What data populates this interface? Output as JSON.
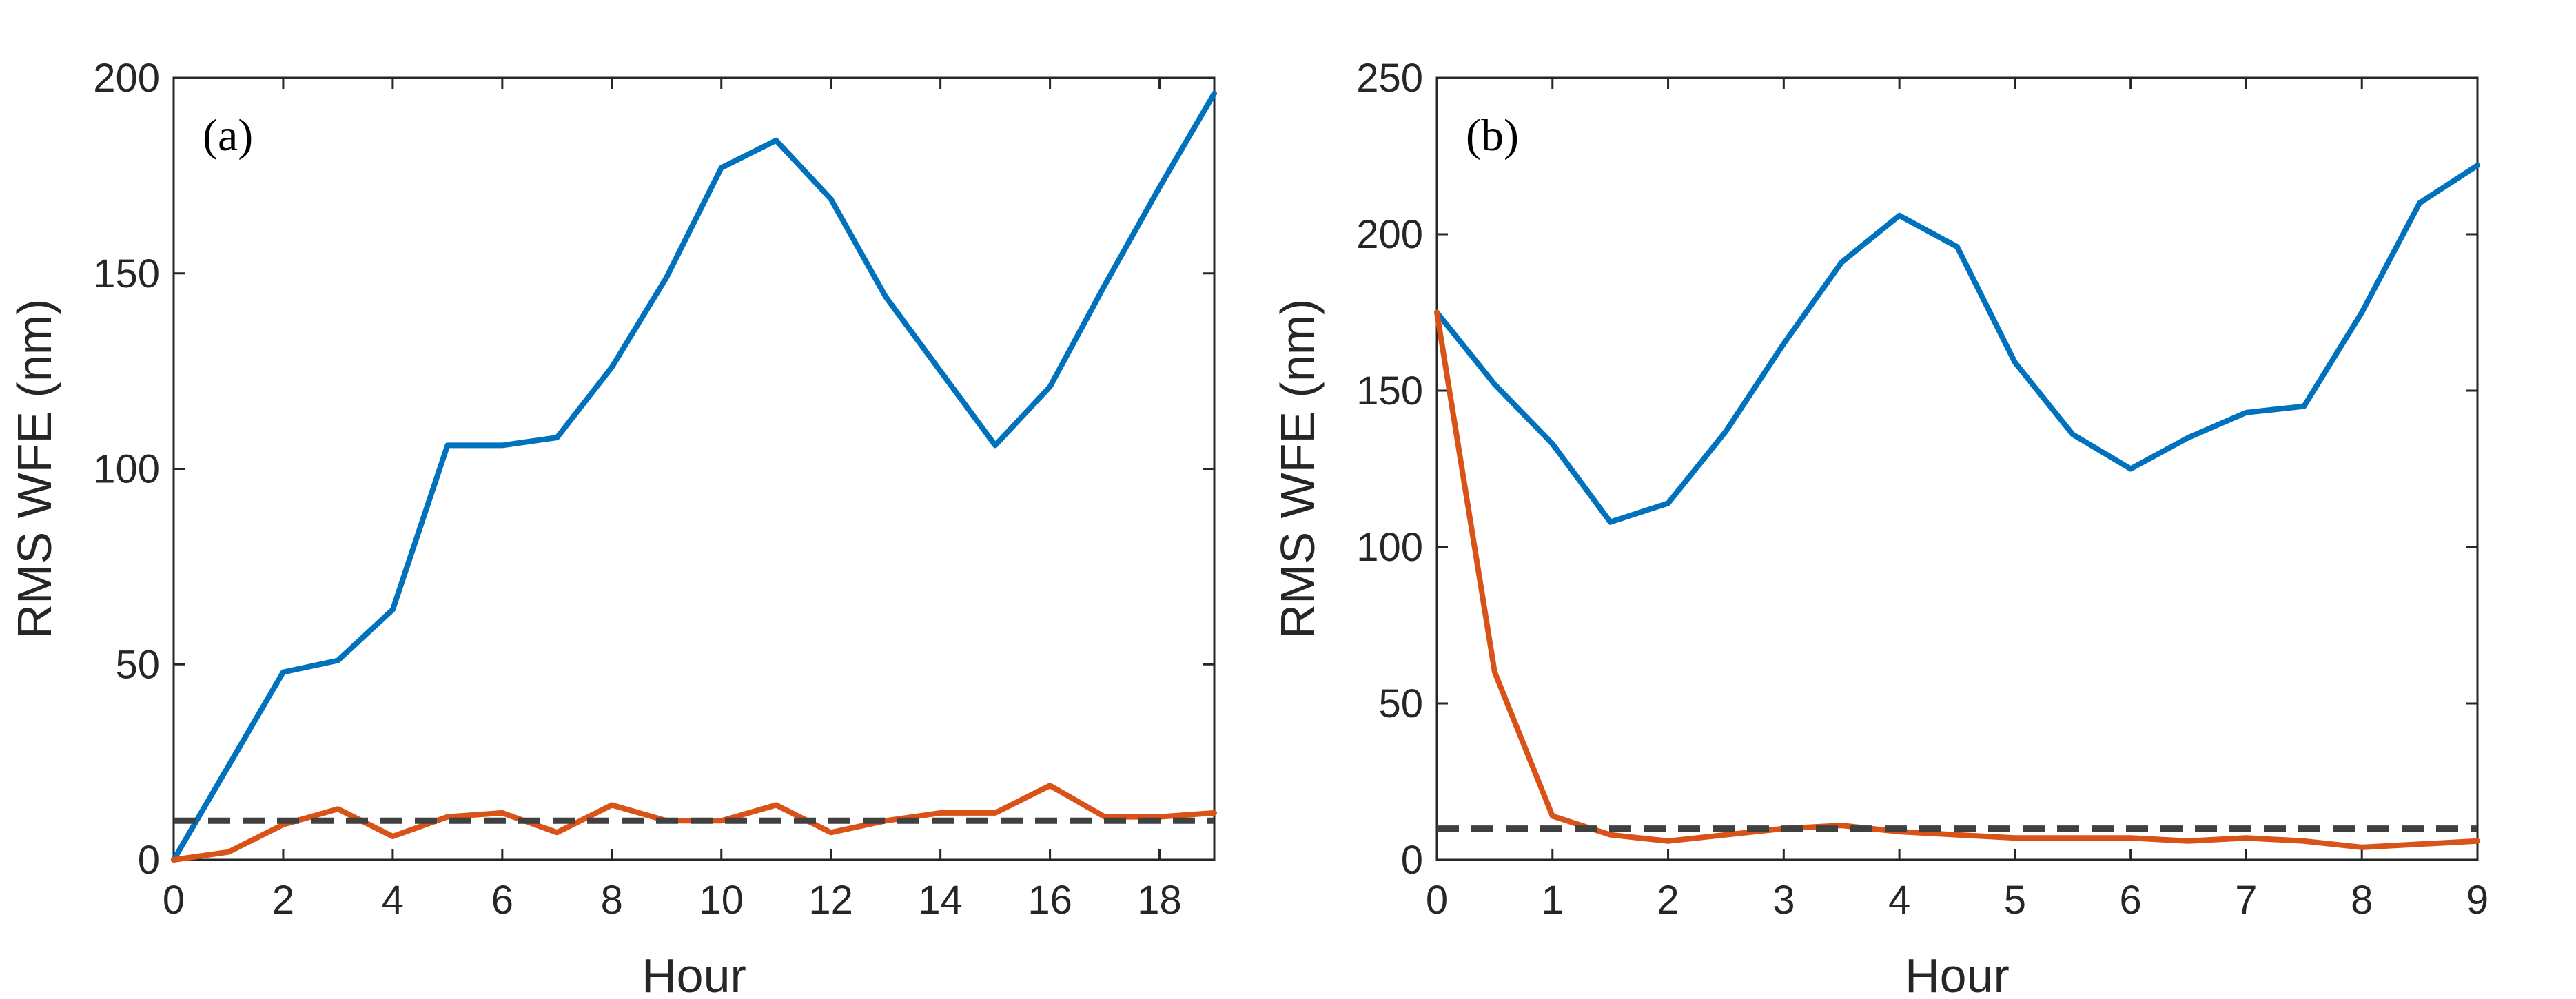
{
  "chart_data": [
    {
      "type": "line",
      "panel_label": "(a)",
      "xlabel": "Hour",
      "ylabel": "RMS WFE (nm)",
      "xlim": [
        0,
        19
      ],
      "ylim": [
        0,
        200
      ],
      "xticks": [
        0,
        2,
        4,
        6,
        8,
        10,
        12,
        14,
        16,
        18
      ],
      "yticks": [
        0,
        50,
        100,
        150,
        200
      ],
      "grid": false,
      "series": [
        {
          "color": "#0072BD",
          "style": "solid",
          "x": [
            0,
            1,
            2,
            3,
            4,
            5,
            6,
            7,
            8,
            9,
            10,
            11,
            12,
            13,
            14,
            15,
            16,
            17,
            18,
            19
          ],
          "y": [
            0,
            24,
            48,
            51,
            64,
            106,
            106,
            108,
            126,
            149,
            177,
            184,
            169,
            144,
            125,
            106,
            121,
            147,
            172,
            196
          ]
        },
        {
          "color": "#D95319",
          "style": "solid",
          "x": [
            0,
            1,
            2,
            3,
            4,
            5,
            6,
            7,
            8,
            9,
            10,
            11,
            12,
            13,
            14,
            15,
            16,
            17,
            18,
            19
          ],
          "y": [
            0,
            2,
            9,
            13,
            6,
            11,
            12,
            7,
            14,
            10,
            10,
            14,
            7,
            10,
            12,
            12,
            19,
            11,
            11,
            12
          ]
        },
        {
          "color": "#404040",
          "style": "dashed",
          "x": [
            0,
            19
          ],
          "y": [
            10,
            10
          ]
        }
      ]
    },
    {
      "type": "line",
      "panel_label": "(b)",
      "xlabel": "Hour",
      "ylabel": "RMS WFE (nm)",
      "xlim": [
        0,
        9
      ],
      "ylim": [
        0,
        250
      ],
      "xticks": [
        0,
        1,
        2,
        3,
        4,
        5,
        6,
        7,
        8,
        9
      ],
      "yticks": [
        0,
        50,
        100,
        150,
        200,
        250
      ],
      "grid": false,
      "series": [
        {
          "color": "#0072BD",
          "style": "solid",
          "x": [
            0,
            0.5,
            1,
            1.5,
            2,
            2.5,
            3,
            3.5,
            4,
            4.5,
            5,
            5.5,
            6,
            6.5,
            7,
            7.5,
            8,
            8.5,
            9
          ],
          "y": [
            175,
            152,
            133,
            108,
            114,
            137,
            165,
            191,
            206,
            196,
            159,
            136,
            125,
            135,
            143,
            145,
            175,
            210,
            222
          ]
        },
        {
          "color": "#D95319",
          "style": "solid",
          "x": [
            0,
            0.5,
            1,
            1.5,
            2,
            2.5,
            3,
            3.5,
            4,
            4.5,
            5,
            5.5,
            6,
            6.5,
            7,
            7.5,
            8,
            8.5,
            9
          ],
          "y": [
            175,
            60,
            14,
            8,
            6,
            8,
            10,
            11,
            9,
            8,
            7,
            7,
            7,
            6,
            7,
            6,
            4,
            5,
            6
          ]
        },
        {
          "color": "#404040",
          "style": "dashed",
          "x": [
            0,
            9
          ],
          "y": [
            10,
            10
          ]
        }
      ]
    }
  ]
}
